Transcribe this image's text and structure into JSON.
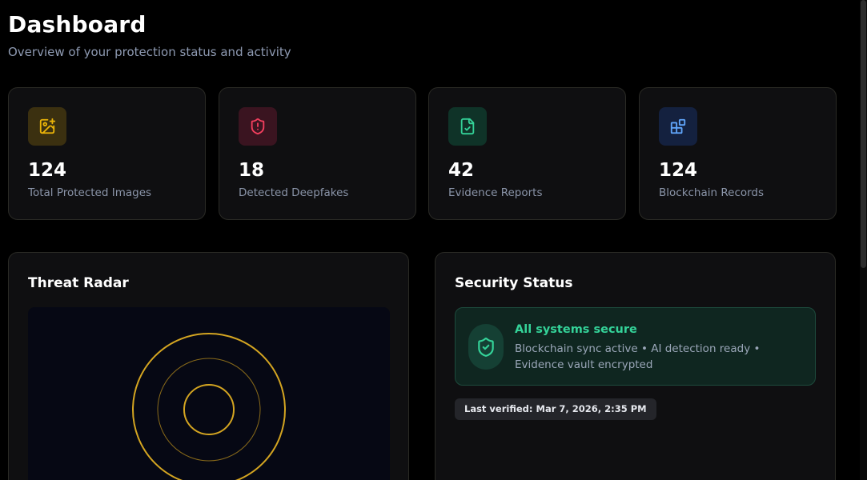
{
  "header": {
    "title": "Dashboard",
    "subtitle": "Overview of your protection status and activity"
  },
  "stats": [
    {
      "value": "124",
      "label": "Total Protected Images",
      "icon": "image-plus-icon",
      "color": "#eab308",
      "bg": "#3b3010"
    },
    {
      "value": "18",
      "label": "Detected Deepfakes",
      "icon": "shield-alert-icon",
      "color": "#f43f5e",
      "bg": "#3a1420"
    },
    {
      "value": "42",
      "label": "Evidence Reports",
      "icon": "file-check-icon",
      "color": "#34d399",
      "bg": "#0f3328"
    },
    {
      "value": "124",
      "label": "Blockchain Records",
      "icon": "blocks-icon",
      "color": "#60a5fa",
      "bg": "#14213f"
    }
  ],
  "threat_radar": {
    "title": "Threat Radar",
    "ring_color": "#d4a521"
  },
  "security_status": {
    "title": "Security Status",
    "headline": "All systems secure",
    "detail": "Blockchain sync active • AI detection ready • Evidence vault encrypted",
    "last_verified": "Last verified: Mar 7, 2026, 2:35 PM",
    "accent": "#34d399"
  }
}
